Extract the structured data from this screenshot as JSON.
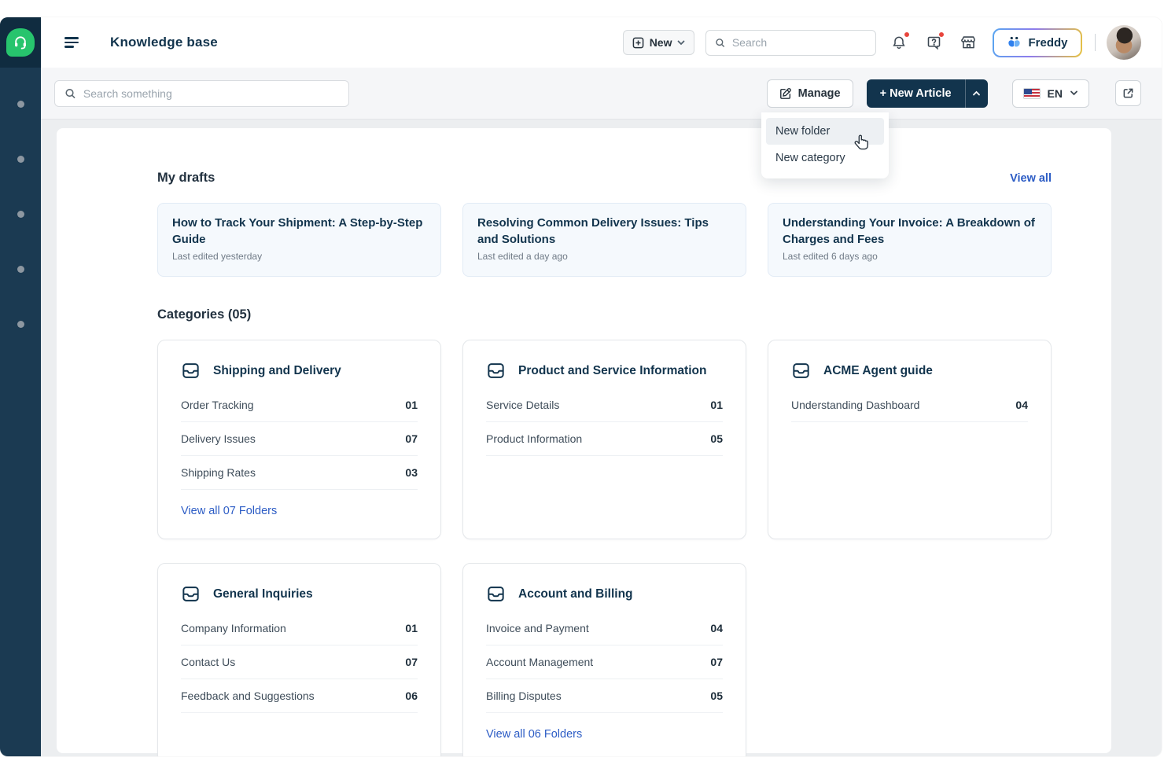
{
  "colors": {
    "navy": "#12344d",
    "rail_bg": "#1b3a52",
    "logo_green": "#27c46d",
    "link_blue": "#2c5cc5",
    "alert_red": "#e8453c",
    "toolbar_bg": "#f5f6f8"
  },
  "sidebar": {
    "logo_icon": "headset-icon",
    "nav_dot_count": 5
  },
  "header": {
    "title": "Knowledge base",
    "new_button_label": "New",
    "search_placeholder": "Search",
    "freddy_label": "Freddy",
    "icons": [
      "bell-icon",
      "help-icon",
      "marketplace-icon"
    ]
  },
  "toolbar": {
    "search_placeholder": "Search something",
    "manage_label": "Manage",
    "new_article_label": "+ New Article",
    "language_code": "EN"
  },
  "dropdown_menu": {
    "items": [
      {
        "label": "New folder",
        "hovered": true
      },
      {
        "label": "New category",
        "hovered": false
      }
    ]
  },
  "drafts": {
    "heading": "My drafts",
    "view_all_label": "View all",
    "cards": [
      {
        "title": "How to Track Your Shipment: A Step-by-Step Guide",
        "meta": "Last edited yesterday"
      },
      {
        "title": "Resolving Common Delivery Issues: Tips and Solutions",
        "meta": "Last edited a day ago"
      },
      {
        "title": "Understanding Your Invoice: A Breakdown of Charges and Fees",
        "meta": "Last edited 6 days ago"
      }
    ]
  },
  "categories": {
    "heading": "Categories (05)",
    "cards": [
      {
        "title": "Shipping and Delivery",
        "folders": [
          {
            "name": "Order Tracking",
            "count": "01"
          },
          {
            "name": "Delivery Issues",
            "count": "07"
          },
          {
            "name": "Shipping Rates",
            "count": "03"
          }
        ],
        "view_all": "View all 07 Folders"
      },
      {
        "title": "Product and Service Information",
        "folders": [
          {
            "name": "Service Details",
            "count": "01"
          },
          {
            "name": "Product Information",
            "count": "05"
          }
        ],
        "view_all": null
      },
      {
        "title": "ACME Agent guide",
        "folders": [
          {
            "name": "Understanding Dashboard",
            "count": "04"
          }
        ],
        "view_all": null
      },
      {
        "title": "General Inquiries",
        "folders": [
          {
            "name": "Company Information",
            "count": "01"
          },
          {
            "name": "Contact Us",
            "count": "07"
          },
          {
            "name": "Feedback and Suggestions",
            "count": "06"
          }
        ],
        "view_all": null
      },
      {
        "title": "Account and Billing",
        "folders": [
          {
            "name": "Invoice and Payment",
            "count": "04"
          },
          {
            "name": "Account Management",
            "count": "07"
          },
          {
            "name": "Billing Disputes",
            "count": "05"
          }
        ],
        "view_all": "View all 06 Folders"
      }
    ]
  }
}
